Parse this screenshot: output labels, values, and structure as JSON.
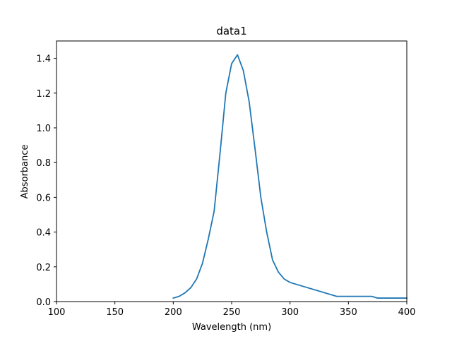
{
  "chart_data": {
    "type": "line",
    "title": "data1",
    "xlabel": "Wavelength (nm)",
    "ylabel": "Absorbance",
    "xlim": [
      100,
      400
    ],
    "ylim": [
      0,
      1.5
    ],
    "xticks": [
      100,
      150,
      200,
      250,
      300,
      350,
      400
    ],
    "xtick_labels": [
      "100",
      "150",
      "200",
      "250",
      "300",
      "350",
      "400"
    ],
    "yticks": [
      0.0,
      0.2,
      0.4,
      0.6,
      0.8,
      1.0,
      1.2,
      1.4
    ],
    "ytick_labels": [
      "0.0",
      "0.2",
      "0.4",
      "0.6",
      "0.8",
      "1.0",
      "1.2",
      "1.4"
    ],
    "grid": false,
    "series": [
      {
        "color": "#1f77b4",
        "x": [
          200,
          205,
          210,
          215,
          220,
          225,
          230,
          235,
          240,
          245,
          250,
          255,
          260,
          265,
          270,
          275,
          280,
          285,
          290,
          295,
          300,
          340,
          370,
          375,
          400
        ],
        "y": [
          0.02,
          0.03,
          0.05,
          0.08,
          0.13,
          0.22,
          0.36,
          0.52,
          0.85,
          1.2,
          1.37,
          1.42,
          1.33,
          1.15,
          0.88,
          0.6,
          0.4,
          0.24,
          0.17,
          0.13,
          0.11,
          0.03,
          0.03,
          0.02,
          0.02
        ]
      }
    ]
  }
}
